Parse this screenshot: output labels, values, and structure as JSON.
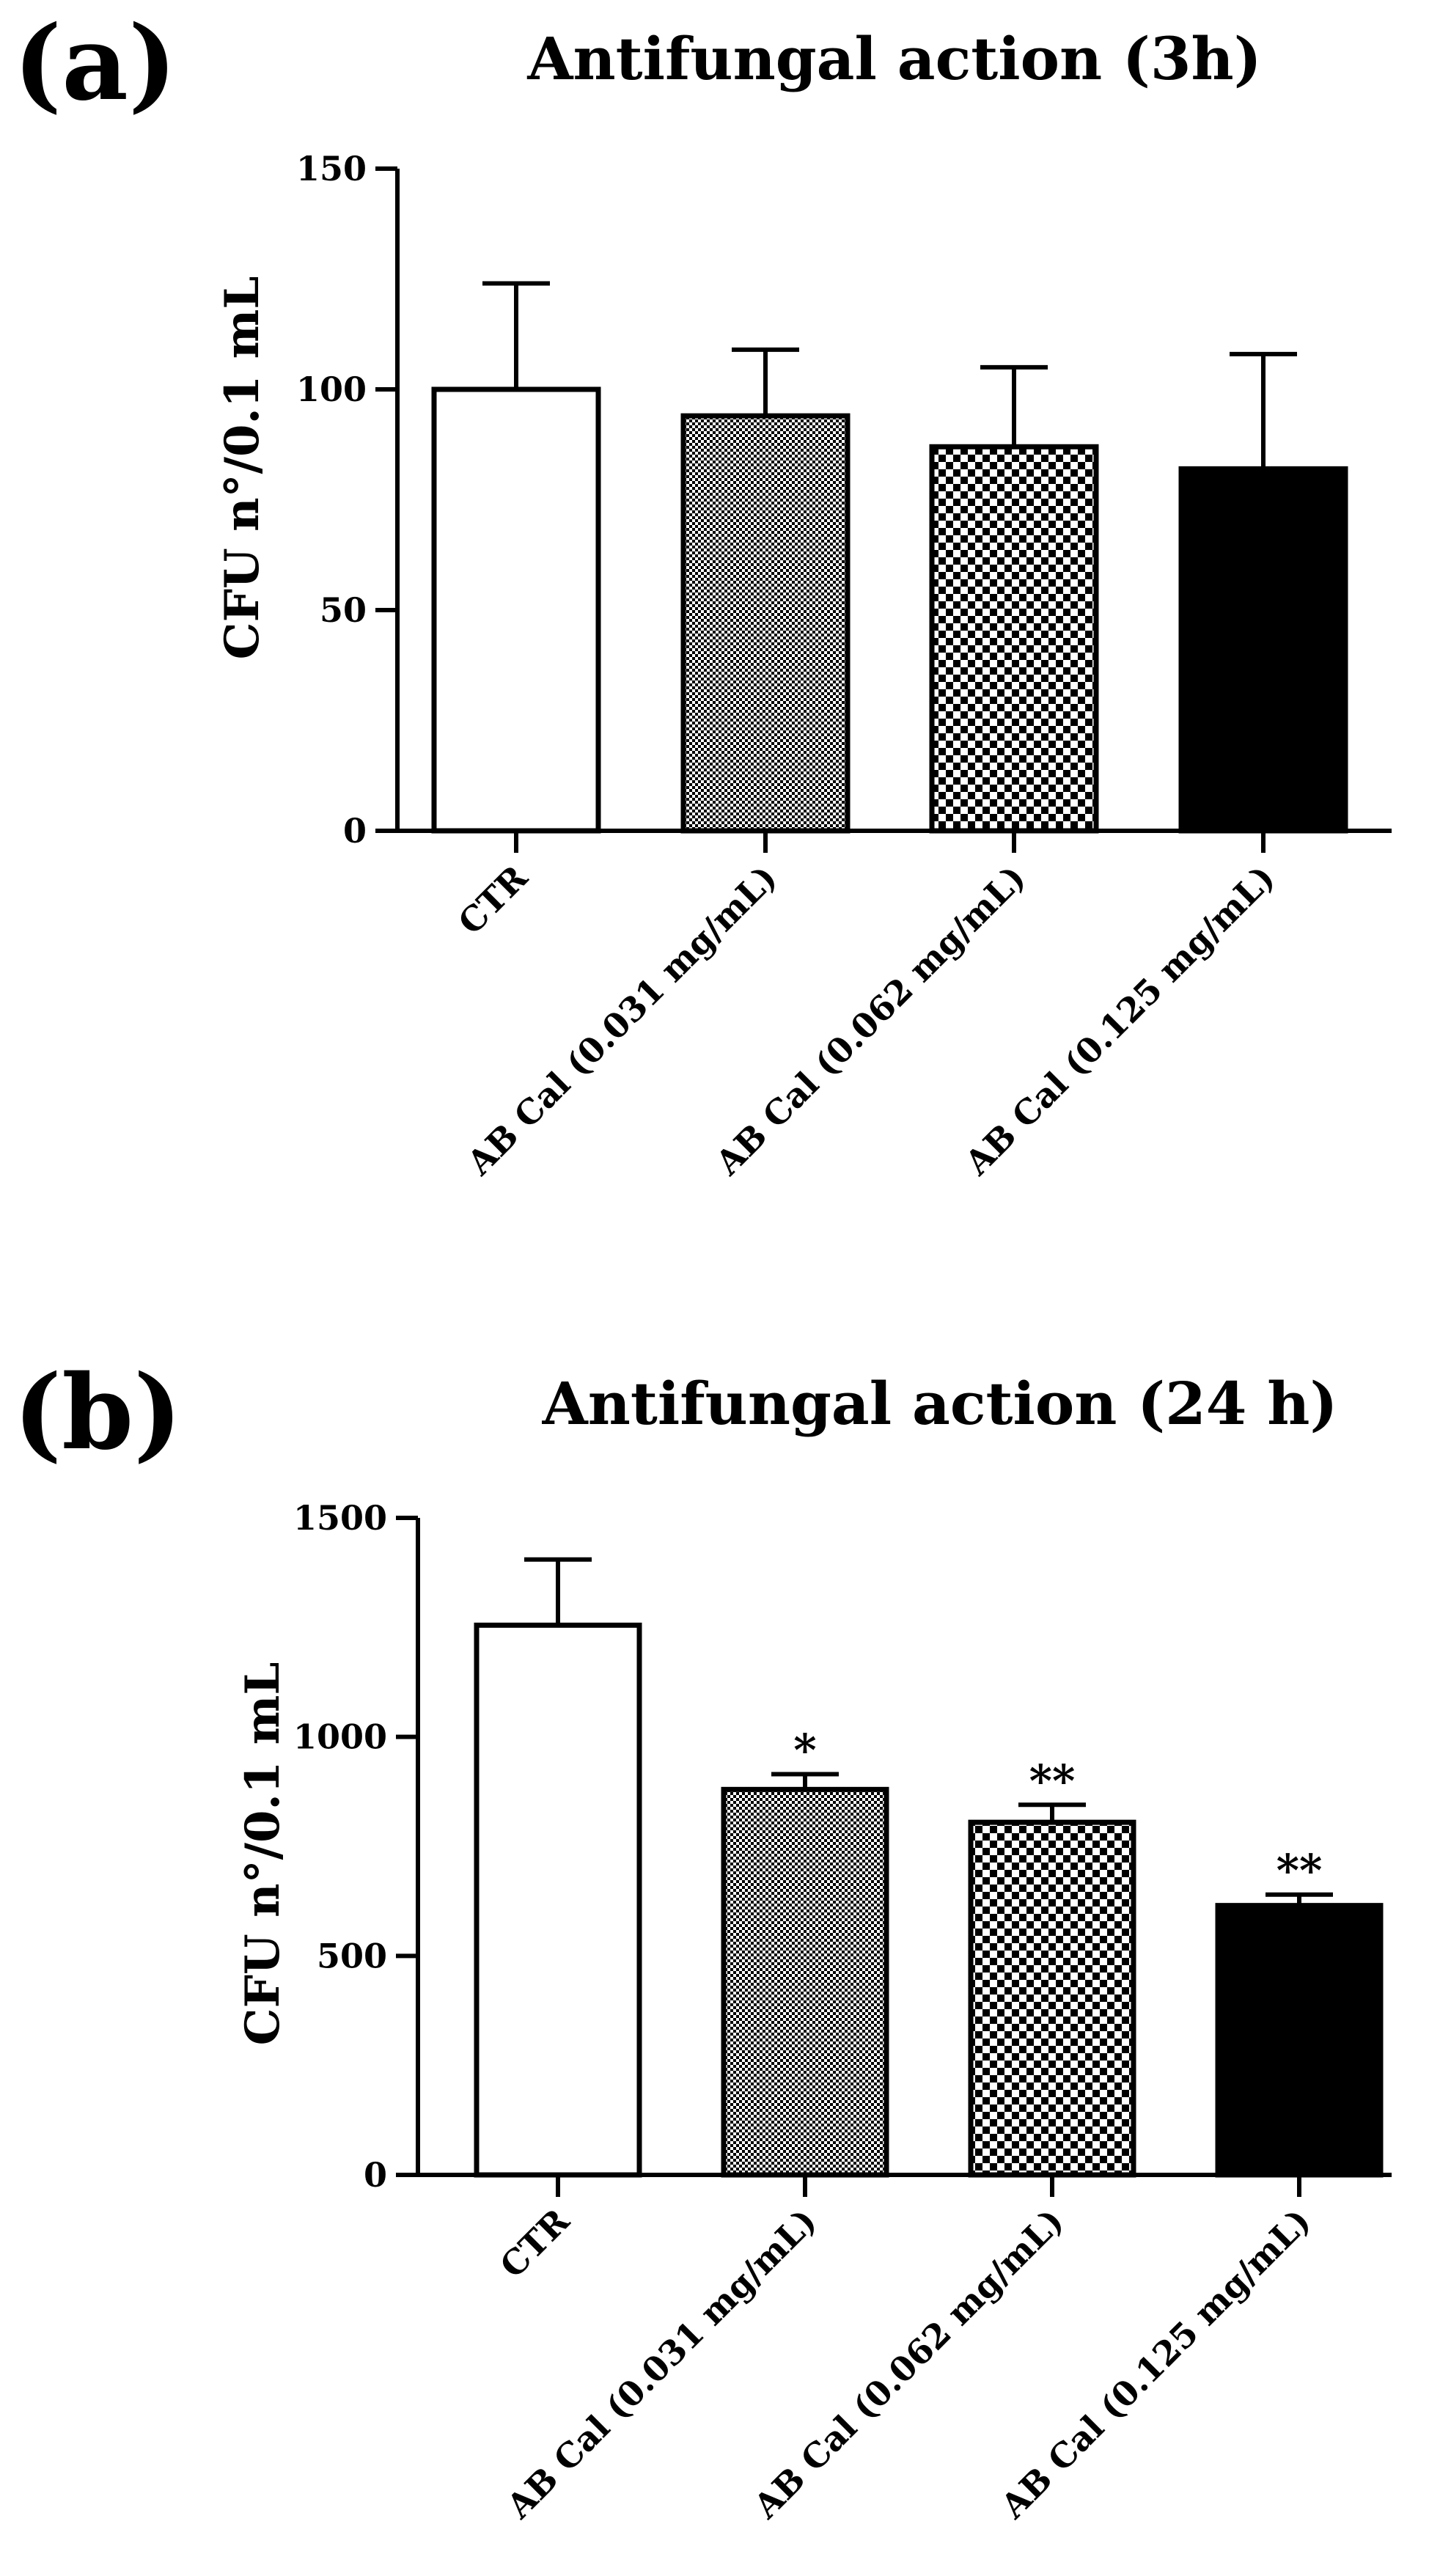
{
  "chart_data": [
    {
      "type": "bar",
      "panel_label": "(a)",
      "title": "Antifungal action (3h)",
      "xlabel": "",
      "ylabel": "CFU n°/0.1 mL",
      "ylim": [
        0,
        150
      ],
      "yticks": [
        "0",
        "50",
        "100",
        "150"
      ],
      "categories": [
        "CTR",
        "AB Cal (0.031 mg/mL)",
        "AB Cal (0.062 mg/mL)",
        "AB Cal (0.125 mg/mL)"
      ],
      "values": [
        100,
        94,
        87,
        82
      ],
      "errors": [
        24,
        15,
        18,
        26
      ],
      "significance": [
        "",
        "",
        "",
        ""
      ],
      "fills": [
        "white",
        "fine-check",
        "coarse-check",
        "black"
      ]
    },
    {
      "type": "bar",
      "panel_label": "(b)",
      "title": "Antifungal action (24 h)",
      "xlabel": "",
      "ylabel": "CFU n°/0.1 mL",
      "ylim": [
        0,
        1500
      ],
      "yticks": [
        "0",
        "500",
        "1000",
        "1500"
      ],
      "categories": [
        "CTR",
        "AB Cal (0.031 mg/mL)",
        "AB Cal (0.062 mg/mL)",
        "AB Cal (0.125 mg/mL)"
      ],
      "values": [
        1255,
        880,
        805,
        615
      ],
      "errors": [
        150,
        35,
        40,
        25
      ],
      "significance": [
        "",
        "*",
        "**",
        "**"
      ],
      "fills": [
        "white",
        "fine-check",
        "coarse-check",
        "black"
      ]
    }
  ],
  "colors": {
    "ink": "#000000",
    "background": "#ffffff"
  }
}
